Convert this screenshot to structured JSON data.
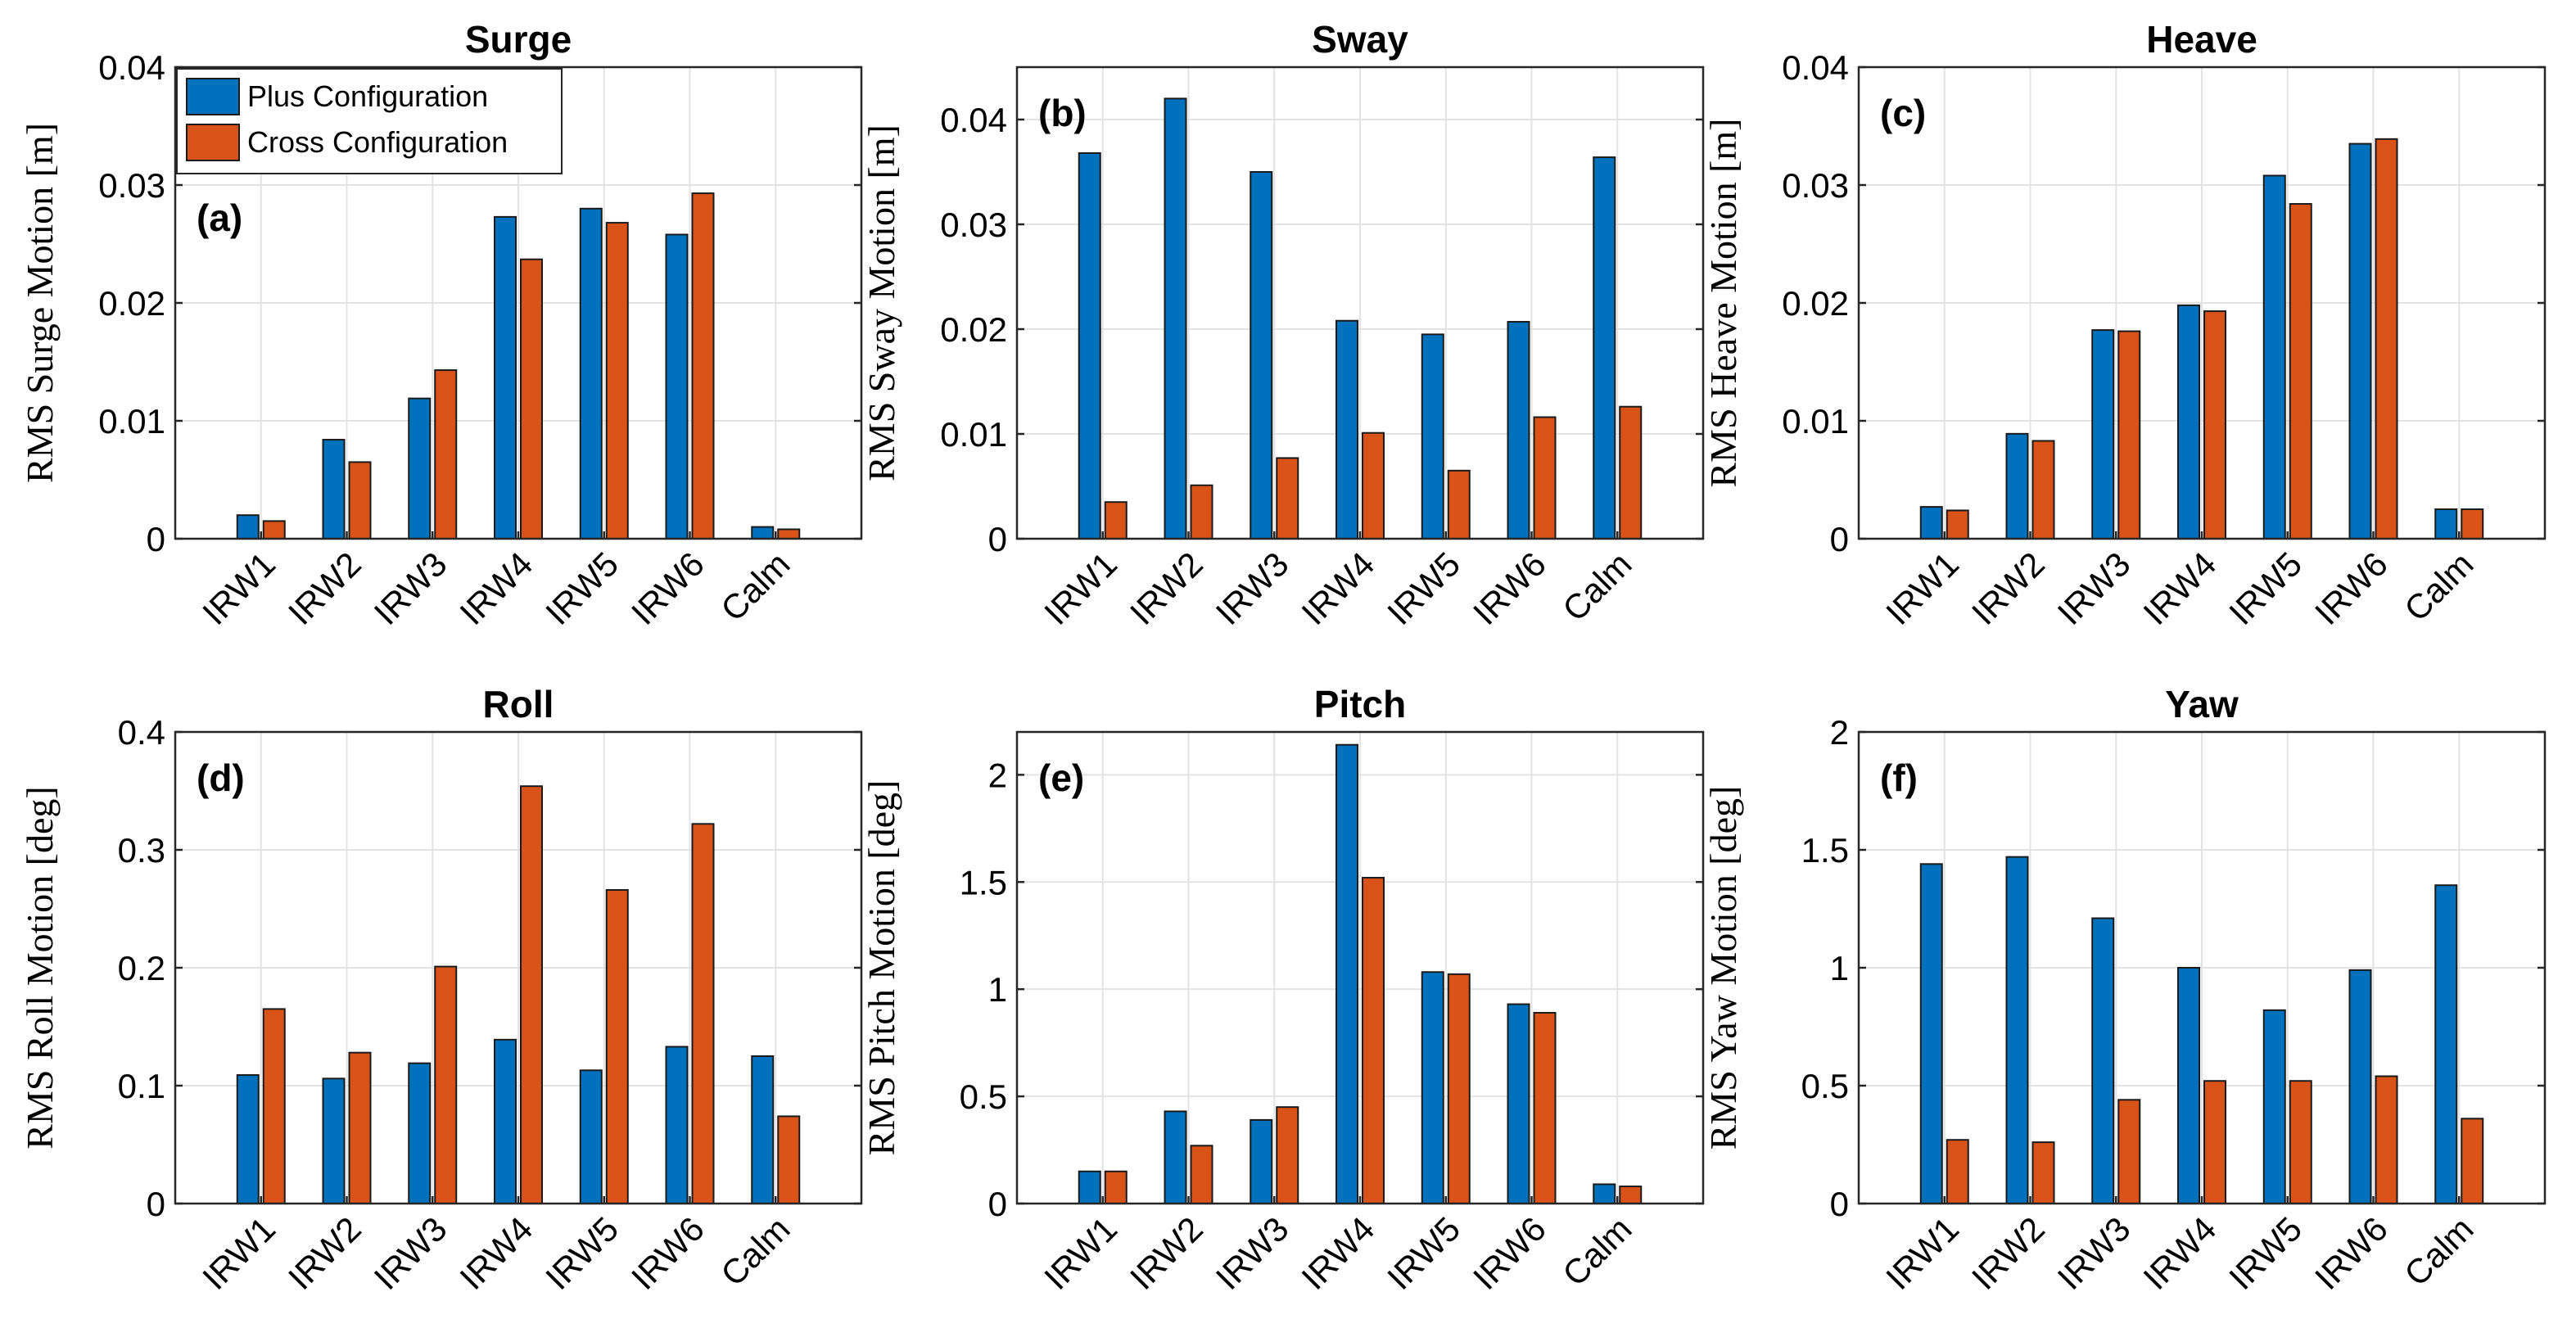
{
  "colors": {
    "plus": "#0072BD",
    "cross": "#D95319"
  },
  "legend": [
    {
      "label": "Plus Configuration",
      "color": "#0072BD"
    },
    {
      "label": "Cross Configuration",
      "color": "#D95319"
    }
  ],
  "chart_data": [
    {
      "type": "bar",
      "title": "Surge",
      "panel_label": "(a)",
      "ylabel": "RMS Surge Motion [m]",
      "xlabel": "",
      "categories": [
        "IRW1",
        "IRW2",
        "IRW3",
        "IRW4",
        "IRW5",
        "IRW6",
        "Calm"
      ],
      "ylim": [
        0,
        0.04
      ],
      "yticks": [
        0,
        0.01,
        0.02,
        0.03,
        0.04
      ],
      "ytick_labels": [
        "0",
        "0.01",
        "0.02",
        "0.03",
        "0.04"
      ],
      "grid": true,
      "legend_position": "top-left",
      "series": [
        {
          "name": "Plus Configuration",
          "values": [
            0.002,
            0.0084,
            0.0119,
            0.0273,
            0.028,
            0.0258,
            0.001
          ]
        },
        {
          "name": "Cross Configuration",
          "values": [
            0.0015,
            0.0065,
            0.0143,
            0.0237,
            0.0268,
            0.0293,
            0.0008
          ]
        }
      ]
    },
    {
      "type": "bar",
      "title": "Sway",
      "panel_label": "(b)",
      "ylabel": "RMS Sway Motion [m]",
      "xlabel": "",
      "categories": [
        "IRW1",
        "IRW2",
        "IRW3",
        "IRW4",
        "IRW5",
        "IRW6",
        "Calm"
      ],
      "ylim": [
        0,
        0.045
      ],
      "yticks": [
        0,
        0.01,
        0.02,
        0.03,
        0.04
      ],
      "ytick_labels": [
        "0",
        "0.01",
        "0.02",
        "0.03",
        "0.04"
      ],
      "grid": true,
      "series": [
        {
          "name": "Plus Configuration",
          "values": [
            0.0368,
            0.042,
            0.035,
            0.0208,
            0.0195,
            0.0207,
            0.0364
          ]
        },
        {
          "name": "Cross Configuration",
          "values": [
            0.0035,
            0.0051,
            0.0077,
            0.0101,
            0.0065,
            0.0116,
            0.0126
          ]
        }
      ]
    },
    {
      "type": "bar",
      "title": "Heave",
      "panel_label": "(c)",
      "ylabel": "RMS Heave Motion [m]",
      "xlabel": "",
      "categories": [
        "IRW1",
        "IRW2",
        "IRW3",
        "IRW4",
        "IRW5",
        "IRW6",
        "Calm"
      ],
      "ylim": [
        0,
        0.04
      ],
      "yticks": [
        0,
        0.01,
        0.02,
        0.03,
        0.04
      ],
      "ytick_labels": [
        "0",
        "0.01",
        "0.02",
        "0.03",
        "0.04"
      ],
      "grid": true,
      "series": [
        {
          "name": "Plus Configuration",
          "values": [
            0.0027,
            0.0089,
            0.0177,
            0.0198,
            0.0308,
            0.0335,
            0.0025
          ]
        },
        {
          "name": "Cross Configuration",
          "values": [
            0.0024,
            0.0083,
            0.0176,
            0.0193,
            0.0284,
            0.0339,
            0.0025
          ]
        }
      ]
    },
    {
      "type": "bar",
      "title": "Roll",
      "panel_label": "(d)",
      "ylabel": "RMS Roll Motion [deg]",
      "xlabel": "",
      "categories": [
        "IRW1",
        "IRW2",
        "IRW3",
        "IRW4",
        "IRW5",
        "IRW6",
        "Calm"
      ],
      "ylim": [
        0,
        0.4
      ],
      "yticks": [
        0,
        0.1,
        0.2,
        0.3,
        0.4
      ],
      "ytick_labels": [
        "0",
        "0.1",
        "0.2",
        "0.3",
        "0.4"
      ],
      "grid": true,
      "series": [
        {
          "name": "Plus Configuration",
          "values": [
            0.109,
            0.106,
            0.119,
            0.139,
            0.113,
            0.133,
            0.125
          ]
        },
        {
          "name": "Cross Configuration",
          "values": [
            0.165,
            0.128,
            0.201,
            0.354,
            0.266,
            0.322,
            0.074
          ]
        }
      ]
    },
    {
      "type": "bar",
      "title": "Pitch",
      "panel_label": "(e)",
      "ylabel": "RMS Pitch Motion [deg]",
      "xlabel": "",
      "categories": [
        "IRW1",
        "IRW2",
        "IRW3",
        "IRW4",
        "IRW5",
        "IRW6",
        "Calm"
      ],
      "ylim": [
        0,
        2.2
      ],
      "yticks": [
        0,
        0.5,
        1,
        1.5,
        2
      ],
      "ytick_labels": [
        "0",
        "0.5",
        "1",
        "1.5",
        "2"
      ],
      "grid": true,
      "series": [
        {
          "name": "Plus Configuration",
          "values": [
            0.15,
            0.43,
            0.39,
            2.14,
            1.08,
            0.93,
            0.09
          ]
        },
        {
          "name": "Cross Configuration",
          "values": [
            0.15,
            0.27,
            0.45,
            1.52,
            1.07,
            0.89,
            0.08
          ]
        }
      ]
    },
    {
      "type": "bar",
      "title": "Yaw",
      "panel_label": "(f)",
      "ylabel": "RMS Yaw Motion [deg]",
      "xlabel": "",
      "categories": [
        "IRW1",
        "IRW2",
        "IRW3",
        "IRW4",
        "IRW5",
        "IRW6",
        "Calm"
      ],
      "ylim": [
        0,
        2
      ],
      "yticks": [
        0,
        0.5,
        1,
        1.5,
        2
      ],
      "ytick_labels": [
        "0",
        "0.5",
        "1",
        "1.5",
        "2"
      ],
      "grid": true,
      "series": [
        {
          "name": "Plus Configuration",
          "values": [
            1.44,
            1.47,
            1.21,
            1.0,
            0.82,
            0.99,
            1.35
          ]
        },
        {
          "name": "Cross Configuration",
          "values": [
            0.27,
            0.26,
            0.44,
            0.52,
            0.52,
            0.54,
            0.36
          ]
        }
      ]
    }
  ]
}
